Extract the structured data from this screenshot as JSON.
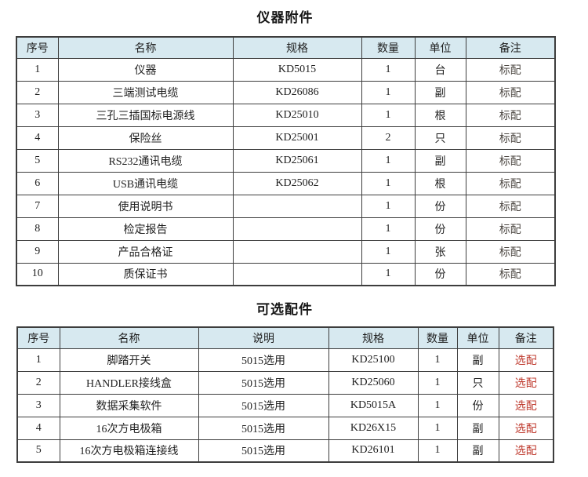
{
  "page": {
    "background": "#ffffff"
  },
  "colors": {
    "header_bg": "#d7e9f0",
    "border": "#3d3d3d",
    "text": "#1f1f1f",
    "standard_note": "#4f4a45",
    "optional_note": "#bf3a2e"
  },
  "table1": {
    "title": "仪器附件",
    "headers": [
      "序号",
      "名称",
      "规格",
      "数量",
      "单位",
      "备注"
    ],
    "rows": [
      [
        "1",
        "仪器",
        "KD5015",
        "1",
        "台",
        "标配"
      ],
      [
        "2",
        "三端测试电缆",
        "KD26086",
        "1",
        "副",
        "标配"
      ],
      [
        "3",
        "三孔三插国标电源线",
        "KD25010",
        "1",
        "根",
        "标配"
      ],
      [
        "4",
        "保险丝",
        "KD25001",
        "2",
        "只",
        "标配"
      ],
      [
        "5",
        "RS232通讯电缆",
        "KD25061",
        "1",
        "副",
        "标配"
      ],
      [
        "6",
        "USB通讯电缆",
        "KD25062",
        "1",
        "根",
        "标配"
      ],
      [
        "7",
        "使用说明书",
        "",
        "1",
        "份",
        "标配"
      ],
      [
        "8",
        "检定报告",
        "",
        "1",
        "份",
        "标配"
      ],
      [
        "9",
        "产品合格证",
        "",
        "1",
        "张",
        "标配"
      ],
      [
        "10",
        "质保证书",
        "",
        "1",
        "份",
        "标配"
      ]
    ]
  },
  "table2": {
    "title": "可选配件",
    "headers": [
      "序号",
      "名称",
      "说明",
      "规格",
      "数量",
      "单位",
      "备注"
    ],
    "rows": [
      [
        "1",
        "脚踏开关",
        "5015选用",
        "KD25100",
        "1",
        "副",
        "选配"
      ],
      [
        "2",
        "HANDLER接线盒",
        "5015选用",
        "KD25060",
        "1",
        "只",
        "选配"
      ],
      [
        "3",
        "数据采集软件",
        "5015选用",
        "KD5015A",
        "1",
        "份",
        "选配"
      ],
      [
        "4",
        "16次方电极箱",
        "5015选用",
        "KD26X15",
        "1",
        "副",
        "选配"
      ],
      [
        "5",
        "16次方电极箱连接线",
        "5015选用",
        "KD26101",
        "1",
        "副",
        "选配"
      ]
    ]
  }
}
